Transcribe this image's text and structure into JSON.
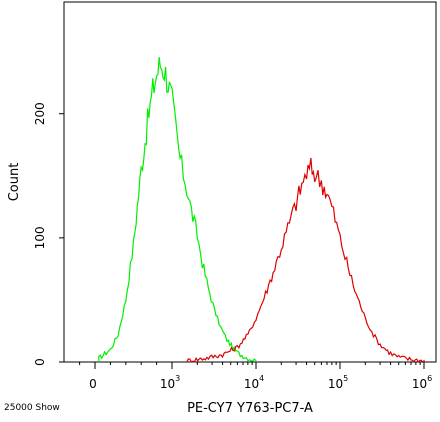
{
  "chart_data": {
    "type": "line",
    "title": "",
    "xlabel": "PE-CY7 Y763-PC7-A",
    "ylabel": "Count",
    "footer_note": "25000 Show",
    "x_scale": "biexponential",
    "x_ticks": [
      {
        "value": 0,
        "base": "0",
        "exp": ""
      },
      {
        "value": 1000,
        "base": "10",
        "exp": "3"
      },
      {
        "value": 10000,
        "base": "10",
        "exp": "4"
      },
      {
        "value": 100000,
        "base": "10",
        "exp": "5"
      },
      {
        "value": 1000000,
        "base": "10",
        "exp": "6"
      }
    ],
    "ylim": [
      0,
      290
    ],
    "y_ticks": [
      0,
      100,
      200
    ],
    "grid": false,
    "legend": "none",
    "series": [
      {
        "color": "#00ee00",
        "x": [
          50,
          200,
          300,
          400,
          500,
          550,
          600,
          650,
          700,
          750,
          800,
          850,
          900,
          950,
          1000,
          1100,
          1200,
          1300,
          1500,
          1700,
          2000,
          2300,
          2700,
          3200,
          3800,
          4500,
          5500,
          6500,
          8000,
          10000
        ],
        "y": [
          3,
          10,
          22,
          50,
          95,
          125,
          155,
          178,
          200,
          218,
          232,
          240,
          236,
          225,
          210,
          190,
          170,
          158,
          140,
          122,
          102,
          80,
          60,
          42,
          28,
          18,
          10,
          6,
          3,
          1
        ]
      },
      {
        "color": "#dd0000",
        "x": [
          1500,
          2500,
          4000,
          6000,
          8000,
          10000,
          13000,
          16000,
          20000,
          25000,
          30000,
          35000,
          40000,
          45000,
          50000,
          60000,
          70000,
          80000,
          100000,
          120000,
          150000,
          200000,
          250000,
          300000,
          400000,
          500000,
          700000,
          1000000
        ],
        "y": [
          1,
          3,
          6,
          12,
          22,
          35,
          55,
          72,
          92,
          112,
          128,
          142,
          152,
          156,
          152,
          145,
          136,
          125,
          100,
          80,
          58,
          35,
          22,
          14,
          7,
          4,
          2,
          1
        ]
      }
    ]
  }
}
